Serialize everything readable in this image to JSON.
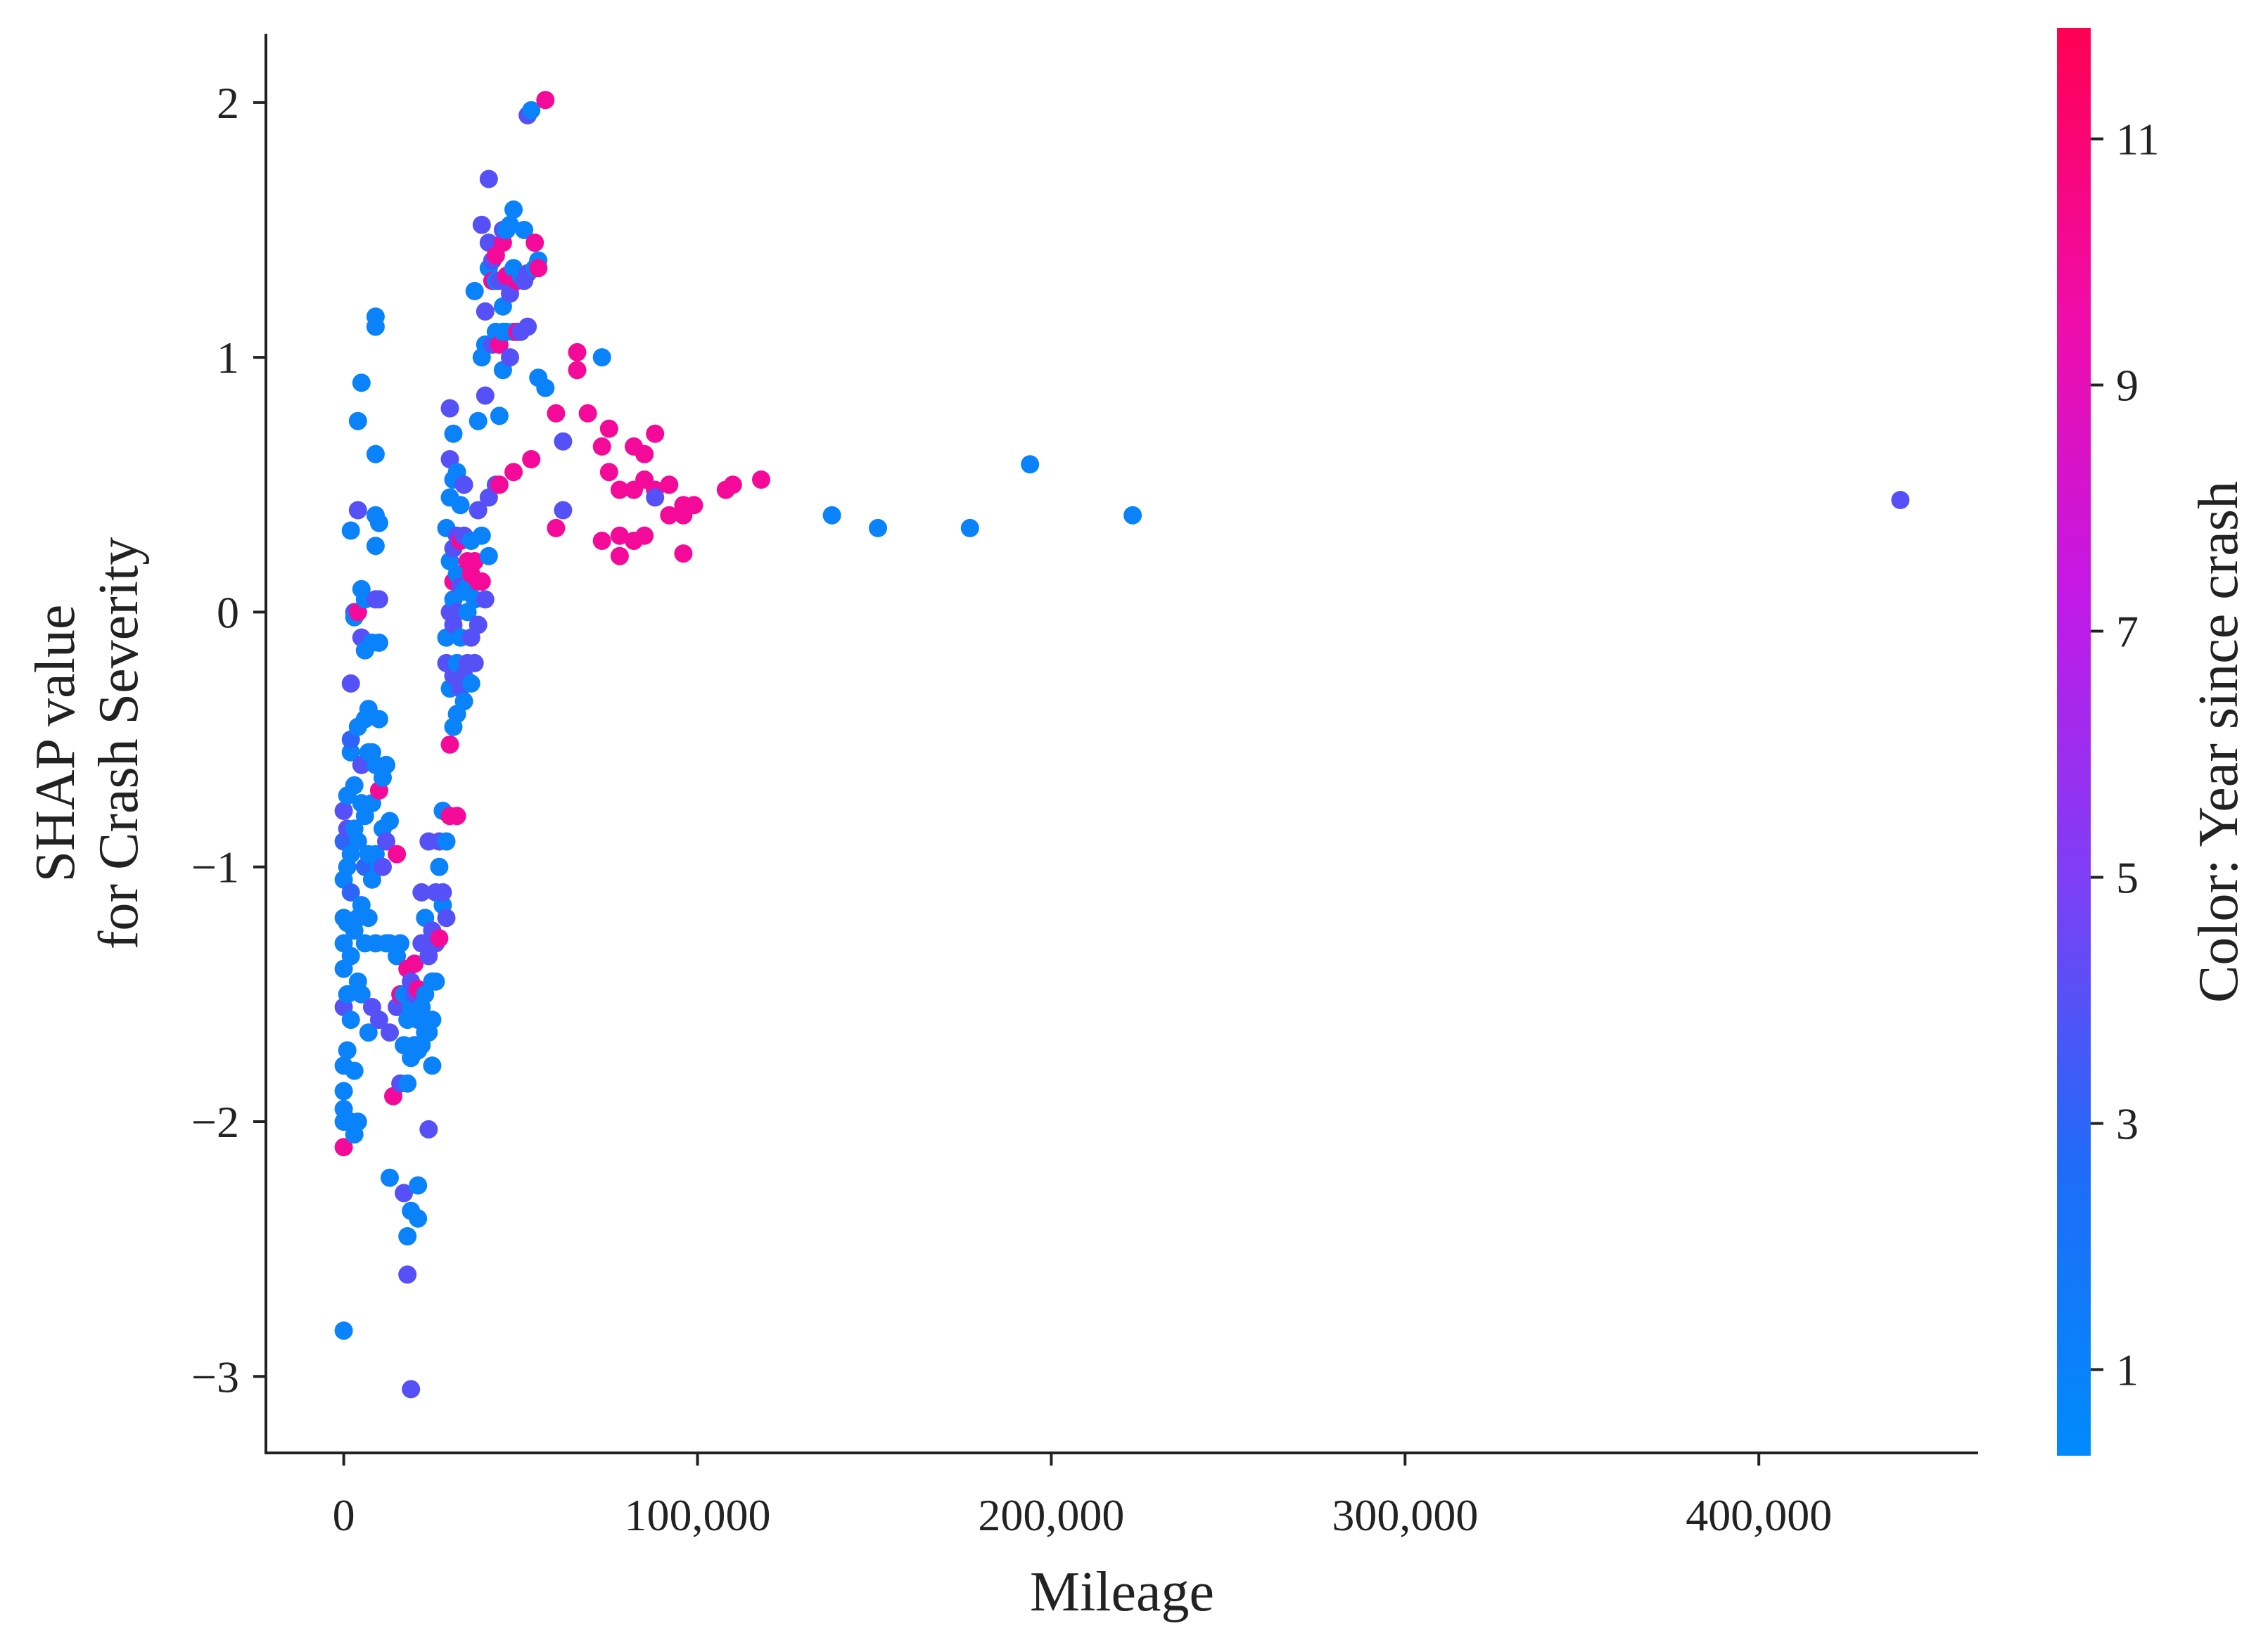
{
  "chart_data": {
    "type": "scatter",
    "title": "",
    "xlabel": "Mileage",
    "ylabel_lines": [
      "SHAP value",
      "for Crash Severity"
    ],
    "colorbar_label": "Color: Year since crash",
    "xlim": [
      -22000,
      462000
    ],
    "ylim": [
      -3.3,
      2.27
    ],
    "color_range": [
      0.3,
      11.9
    ],
    "x_ticks": [
      0,
      100000,
      200000,
      300000,
      400000
    ],
    "x_tick_labels": [
      "0",
      "100,000",
      "200,000",
      "300,000",
      "400,000"
    ],
    "y_ticks": [
      -3,
      -2,
      -1,
      0,
      1,
      2
    ],
    "y_tick_labels": [
      "−3",
      "−2",
      "−1",
      "0",
      "1",
      "2"
    ],
    "color_ticks": [
      1,
      3,
      5,
      7,
      9,
      11
    ],
    "color_tick_labels": [
      "1",
      "3",
      "5",
      "7",
      "9",
      "11"
    ],
    "colormap": [
      "#008bfb",
      "#1f6cf9",
      "#7c3ff6",
      "#c219e6",
      "#f00ca8",
      "#ff0052"
    ],
    "grid": false,
    "legend": "colorbar-right",
    "points": [
      [
        0,
        -2.82,
        1
      ],
      [
        0,
        -2.1,
        10
      ],
      [
        0,
        -2.0,
        1
      ],
      [
        0,
        -1.95,
        1
      ],
      [
        0,
        -1.88,
        1
      ],
      [
        0,
        -1.78,
        1
      ],
      [
        0,
        -1.55,
        4
      ],
      [
        0,
        -1.4,
        1
      ],
      [
        0,
        -1.3,
        1
      ],
      [
        0,
        -1.2,
        1
      ],
      [
        0,
        -1.05,
        1
      ],
      [
        0,
        -0.9,
        3
      ],
      [
        0,
        -0.78,
        4
      ],
      [
        1000,
        -1.72,
        1
      ],
      [
        1000,
        -1.5,
        1
      ],
      [
        1000,
        -1.22,
        1
      ],
      [
        1000,
        -1.0,
        1
      ],
      [
        1000,
        -0.85,
        4
      ],
      [
        1000,
        -0.72,
        1
      ],
      [
        2000,
        -2.0,
        1
      ],
      [
        2000,
        -1.6,
        1
      ],
      [
        2000,
        -1.35,
        1
      ],
      [
        2000,
        -1.1,
        3
      ],
      [
        2000,
        -0.95,
        1
      ],
      [
        2000,
        -0.55,
        1
      ],
      [
        2000,
        -0.28,
        4
      ],
      [
        2000,
        0.32,
        1
      ],
      [
        2000,
        -0.5,
        3
      ],
      [
        3000,
        -2.05,
        1
      ],
      [
        3000,
        -1.8,
        1
      ],
      [
        3000,
        -1.25,
        1
      ],
      [
        3000,
        -0.85,
        1
      ],
      [
        3000,
        -0.68,
        1
      ],
      [
        3000,
        0.0,
        4
      ],
      [
        3000,
        -0.02,
        1
      ],
      [
        4000,
        -2.0,
        1
      ],
      [
        4000,
        -1.45,
        1
      ],
      [
        4000,
        -1.2,
        1
      ],
      [
        4000,
        -0.9,
        1
      ],
      [
        4000,
        -0.45,
        1
      ],
      [
        4000,
        0.4,
        4
      ],
      [
        4000,
        0.75,
        1
      ],
      [
        4000,
        0.0,
        10
      ],
      [
        5000,
        -1.5,
        1
      ],
      [
        5000,
        -1.15,
        1
      ],
      [
        5000,
        -0.75,
        1
      ],
      [
        5000,
        -0.6,
        4
      ],
      [
        5000,
        -0.1,
        4
      ],
      [
        5000,
        0.09,
        1
      ],
      [
        5000,
        0.9,
        1
      ],
      [
        6000,
        -1.3,
        1
      ],
      [
        6000,
        -1.0,
        3
      ],
      [
        6000,
        -0.8,
        1
      ],
      [
        6000,
        -0.42,
        1
      ],
      [
        6000,
        -0.15,
        1
      ],
      [
        6000,
        0.05,
        1
      ],
      [
        7000,
        -1.65,
        1
      ],
      [
        7000,
        -1.2,
        1
      ],
      [
        7000,
        -0.95,
        1
      ],
      [
        7000,
        -0.55,
        1
      ],
      [
        7000,
        -0.38,
        1
      ],
      [
        8000,
        -1.55,
        4
      ],
      [
        8000,
        -1.05,
        1
      ],
      [
        8000,
        -0.75,
        1
      ],
      [
        8000,
        -0.55,
        1
      ],
      [
        8000,
        -0.12,
        1
      ],
      [
        9000,
        -1.3,
        1
      ],
      [
        9000,
        -0.95,
        1
      ],
      [
        9000,
        -0.6,
        1
      ],
      [
        9000,
        0.05,
        4
      ],
      [
        9000,
        0.26,
        1
      ],
      [
        9000,
        0.38,
        1
      ],
      [
        9000,
        1.16,
        1
      ],
      [
        9000,
        1.12,
        1
      ],
      [
        9000,
        0.62,
        1
      ],
      [
        10000,
        -1.6,
        4
      ],
      [
        10000,
        -1.0,
        1
      ],
      [
        10000,
        -0.7,
        10
      ],
      [
        10000,
        -0.42,
        1
      ],
      [
        10000,
        -0.12,
        1
      ],
      [
        10000,
        0.05,
        4
      ],
      [
        10000,
        0.35,
        1
      ],
      [
        11000,
        -1.0,
        4
      ],
      [
        11000,
        -0.85,
        1
      ],
      [
        11000,
        -0.65,
        1
      ],
      [
        12000,
        -1.3,
        1
      ],
      [
        12000,
        -0.9,
        4
      ],
      [
        12000,
        -0.6,
        1
      ],
      [
        13000,
        -2.22,
        1
      ],
      [
        13000,
        -1.65,
        4
      ],
      [
        13000,
        -1.3,
        1
      ],
      [
        13000,
        -0.82,
        1
      ],
      [
        14000,
        -1.9,
        10
      ],
      [
        15000,
        -1.55,
        4
      ],
      [
        15000,
        -1.35,
        1
      ],
      [
        15000,
        -0.95,
        10
      ],
      [
        16000,
        -1.85,
        4
      ],
      [
        16000,
        -1.5,
        10
      ],
      [
        16000,
        -1.3,
        1
      ],
      [
        17000,
        -2.28,
        4
      ],
      [
        17000,
        -1.7,
        1
      ],
      [
        17000,
        -1.5,
        1
      ],
      [
        18000,
        -2.45,
        1
      ],
      [
        18000,
        -2.6,
        4
      ],
      [
        18000,
        -1.85,
        1
      ],
      [
        18000,
        -1.6,
        1
      ],
      [
        18000,
        -1.4,
        10
      ],
      [
        19000,
        -3.05,
        4
      ],
      [
        19000,
        -2.35,
        1
      ],
      [
        19000,
        -1.75,
        1
      ],
      [
        19000,
        -1.55,
        1
      ],
      [
        19000,
        -1.45,
        4
      ],
      [
        20000,
        -1.7,
        1
      ],
      [
        20000,
        -1.5,
        4
      ],
      [
        20000,
        -1.38,
        10
      ],
      [
        21000,
        -2.38,
        1
      ],
      [
        21000,
        -2.25,
        1
      ],
      [
        21000,
        -1.72,
        1
      ],
      [
        21000,
        -1.6,
        1
      ],
      [
        21000,
        -1.48,
        10
      ],
      [
        22000,
        -1.7,
        1
      ],
      [
        22000,
        -1.55,
        1
      ],
      [
        22000,
        -1.3,
        4
      ],
      [
        22000,
        -1.1,
        4
      ],
      [
        23000,
        -1.65,
        1
      ],
      [
        23000,
        -1.5,
        1
      ],
      [
        23000,
        -1.2,
        1
      ],
      [
        24000,
        -2.03,
        4
      ],
      [
        24000,
        -1.65,
        1
      ],
      [
        24000,
        -1.35,
        4
      ],
      [
        24000,
        -0.9,
        4
      ],
      [
        25000,
        -1.78,
        1
      ],
      [
        25000,
        -1.6,
        1
      ],
      [
        25000,
        -1.45,
        1
      ],
      [
        25000,
        -1.25,
        4
      ],
      [
        26000,
        -1.45,
        1
      ],
      [
        26000,
        -1.3,
        4
      ],
      [
        26000,
        -1.1,
        4
      ],
      [
        27000,
        -1.28,
        10
      ],
      [
        27000,
        -1.0,
        1
      ],
      [
        27000,
        -0.9,
        4
      ],
      [
        28000,
        -1.15,
        1
      ],
      [
        28000,
        -1.1,
        4
      ],
      [
        28000,
        -0.78,
        1
      ],
      [
        29000,
        -1.2,
        4
      ],
      [
        29000,
        -0.9,
        1
      ],
      [
        29000,
        -0.2,
        4
      ],
      [
        29000,
        0.33,
        1
      ],
      [
        29000,
        -0.1,
        1
      ],
      [
        30000,
        -0.8,
        10
      ],
      [
        30000,
        -0.52,
        10
      ],
      [
        30000,
        0.0,
        4
      ],
      [
        30000,
        0.45,
        1
      ],
      [
        30000,
        0.6,
        4
      ],
      [
        30000,
        0.8,
        4
      ],
      [
        30000,
        -0.3,
        1
      ],
      [
        30000,
        0.2,
        1
      ],
      [
        31000,
        -0.45,
        1
      ],
      [
        31000,
        -0.25,
        4
      ],
      [
        31000,
        0.05,
        1
      ],
      [
        31000,
        0.25,
        4
      ],
      [
        31000,
        0.52,
        1
      ],
      [
        31000,
        0.7,
        1
      ],
      [
        31000,
        -0.05,
        4
      ],
      [
        31000,
        0.12,
        10
      ],
      [
        32000,
        -0.4,
        1
      ],
      [
        32000,
        -0.2,
        1
      ],
      [
        32000,
        0.0,
        4
      ],
      [
        32000,
        0.3,
        4
      ],
      [
        32000,
        0.55,
        1
      ],
      [
        32000,
        -0.8,
        10
      ],
      [
        32000,
        0.15,
        1
      ],
      [
        33000,
        -0.3,
        4
      ],
      [
        33000,
        -0.1,
        1
      ],
      [
        33000,
        0.1,
        4
      ],
      [
        33000,
        0.28,
        10
      ],
      [
        33000,
        0.42,
        1
      ],
      [
        34000,
        -0.35,
        1
      ],
      [
        34000,
        -0.25,
        4
      ],
      [
        34000,
        0.08,
        1
      ],
      [
        34000,
        0.3,
        4
      ],
      [
        34000,
        0.5,
        4
      ],
      [
        35000,
        -0.2,
        4
      ],
      [
        35000,
        0.0,
        1
      ],
      [
        35000,
        0.2,
        10
      ],
      [
        35000,
        0.1,
        1
      ],
      [
        36000,
        -0.28,
        1
      ],
      [
        36000,
        -0.1,
        4
      ],
      [
        36000,
        0.28,
        1
      ],
      [
        36000,
        0.15,
        10
      ],
      [
        37000,
        -0.2,
        4
      ],
      [
        37000,
        0.05,
        1
      ],
      [
        37000,
        0.2,
        10
      ],
      [
        37000,
        1.26,
        1
      ],
      [
        38000,
        0.12,
        10
      ],
      [
        38000,
        0.4,
        4
      ],
      [
        38000,
        0.75,
        1
      ],
      [
        38000,
        -0.05,
        4
      ],
      [
        39000,
        0.3,
        1
      ],
      [
        39000,
        1.0,
        1
      ],
      [
        39000,
        1.52,
        4
      ],
      [
        39000,
        0.12,
        10
      ],
      [
        40000,
        0.05,
        4
      ],
      [
        40000,
        0.85,
        4
      ],
      [
        40000,
        1.05,
        1
      ],
      [
        40000,
        1.18,
        4
      ],
      [
        41000,
        0.22,
        1
      ],
      [
        41000,
        0.45,
        4
      ],
      [
        41000,
        1.35,
        1
      ],
      [
        41000,
        1.45,
        4
      ],
      [
        41000,
        1.7,
        4
      ],
      [
        42000,
        1.05,
        4
      ],
      [
        42000,
        1.3,
        10
      ],
      [
        42000,
        1.38,
        4
      ],
      [
        43000,
        0.5,
        4
      ],
      [
        43000,
        1.1,
        1
      ],
      [
        43000,
        1.4,
        10
      ],
      [
        43000,
        1.3,
        1
      ],
      [
        44000,
        0.5,
        10
      ],
      [
        44000,
        0.77,
        1
      ],
      [
        44000,
        1.05,
        10
      ],
      [
        44000,
        1.3,
        4
      ],
      [
        45000,
        0.95,
        1
      ],
      [
        45000,
        1.1,
        1
      ],
      [
        45000,
        1.45,
        10
      ],
      [
        45000,
        1.5,
        4
      ],
      [
        45000,
        1.2,
        1
      ],
      [
        46000,
        1.32,
        10
      ],
      [
        46000,
        1.5,
        1
      ],
      [
        46000,
        1.1,
        1
      ],
      [
        47000,
        1.0,
        4
      ],
      [
        47000,
        1.25,
        4
      ],
      [
        47000,
        1.52,
        1
      ],
      [
        48000,
        0.55,
        10
      ],
      [
        48000,
        1.1,
        1
      ],
      [
        48000,
        1.35,
        1
      ],
      [
        48000,
        1.58,
        1
      ],
      [
        49000,
        1.1,
        10
      ],
      [
        49000,
        1.3,
        10
      ],
      [
        50000,
        1.1,
        4
      ],
      [
        50000,
        1.32,
        1
      ],
      [
        51000,
        1.5,
        1
      ],
      [
        51000,
        1.3,
        4
      ],
      [
        52000,
        1.12,
        4
      ],
      [
        52000,
        1.95,
        4
      ],
      [
        52000,
        1.33,
        4
      ],
      [
        53000,
        0.6,
        10
      ],
      [
        53000,
        1.97,
        1
      ],
      [
        54000,
        1.35,
        1
      ],
      [
        54000,
        1.45,
        10
      ],
      [
        55000,
        0.92,
        1
      ],
      [
        55000,
        1.38,
        1
      ],
      [
        55000,
        1.35,
        10
      ],
      [
        57000,
        0.88,
        1
      ],
      [
        57000,
        2.01,
        10
      ],
      [
        60000,
        0.33,
        10
      ],
      [
        60000,
        0.78,
        10
      ],
      [
        62000,
        0.67,
        4
      ],
      [
        62000,
        0.4,
        4
      ],
      [
        66000,
        0.95,
        10
      ],
      [
        66000,
        1.02,
        10
      ],
      [
        69000,
        0.78,
        10
      ],
      [
        73000,
        0.28,
        10
      ],
      [
        73000,
        0.65,
        10
      ],
      [
        73000,
        1.0,
        1
      ],
      [
        75000,
        0.55,
        10
      ],
      [
        75000,
        0.72,
        10
      ],
      [
        78000,
        0.22,
        10
      ],
      [
        78000,
        0.3,
        10
      ],
      [
        78000,
        0.48,
        10
      ],
      [
        82000,
        0.48,
        10
      ],
      [
        82000,
        0.28,
        10
      ],
      [
        82000,
        0.65,
        10
      ],
      [
        85000,
        0.52,
        10
      ],
      [
        85000,
        0.62,
        10
      ],
      [
        85000,
        0.3,
        10
      ],
      [
        88000,
        0.7,
        10
      ],
      [
        88000,
        0.48,
        10
      ],
      [
        88000,
        0.45,
        4
      ],
      [
        92000,
        0.5,
        10
      ],
      [
        92000,
        0.38,
        10
      ],
      [
        96000,
        0.42,
        10
      ],
      [
        96000,
        0.23,
        10
      ],
      [
        96000,
        0.38,
        10
      ],
      [
        99000,
        0.42,
        10
      ],
      [
        108000,
        0.48,
        10
      ],
      [
        110000,
        0.5,
        10
      ],
      [
        118000,
        0.52,
        10
      ],
      [
        138000,
        0.38,
        1
      ],
      [
        151000,
        0.33,
        1
      ],
      [
        177000,
        0.33,
        1
      ],
      [
        194000,
        0.58,
        1
      ],
      [
        223000,
        0.38,
        1
      ],
      [
        440000,
        0.44,
        4
      ]
    ]
  }
}
